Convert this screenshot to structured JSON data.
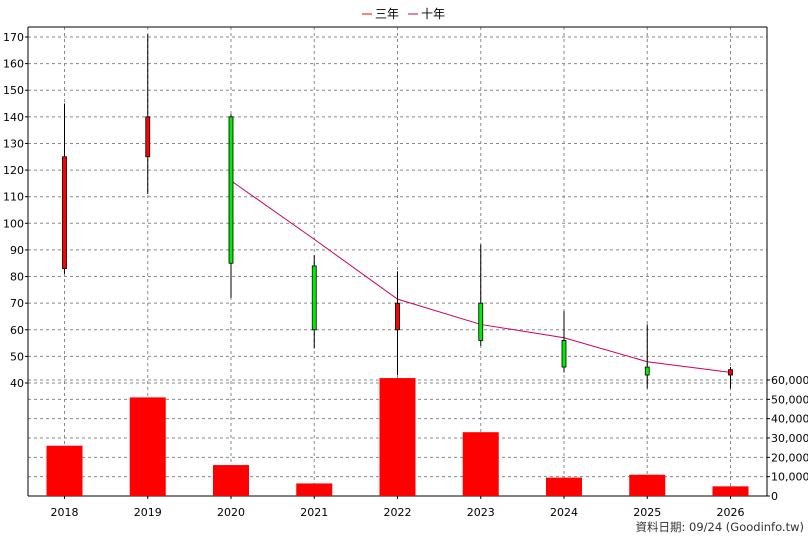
{
  "chart_data": {
    "type": "candlestick+bar",
    "legend": [
      "三年",
      "十年"
    ],
    "colors": {
      "up": "#ff0000",
      "down": "#00ee00",
      "line": "#cc0066",
      "volume": "#ff0000",
      "grid": "#8a8a8a"
    },
    "years": [
      "2018",
      "2019",
      "2020",
      "2021",
      "2022",
      "2023",
      "2024",
      "2025",
      "2026"
    ],
    "price_axis": {
      "min": 30,
      "max": 175,
      "ticks": [
        40,
        50,
        60,
        70,
        80,
        90,
        100,
        110,
        120,
        130,
        140,
        150,
        160,
        170
      ]
    },
    "candles": [
      {
        "year": "2018",
        "open": 83,
        "close": 125,
        "high": 145,
        "low": 81
      },
      {
        "year": "2019",
        "open": 125,
        "close": 140,
        "high": 171,
        "low": 111
      },
      {
        "year": "2020",
        "open": 140,
        "close": 85,
        "high": 141,
        "low": 72
      },
      {
        "year": "2021",
        "open": 84,
        "close": 60,
        "high": 88,
        "low": 53
      },
      {
        "year": "2022",
        "open": 60,
        "close": 70,
        "high": 82,
        "low": 43
      },
      {
        "year": "2023",
        "open": 70,
        "close": 56,
        "high": 92,
        "low": 54
      },
      {
        "year": "2024",
        "open": 56,
        "close": 46,
        "high": 67,
        "low": 44
      },
      {
        "year": "2025",
        "open": 46,
        "close": 43,
        "high": 62,
        "low": 38
      },
      {
        "year": "2026",
        "open": 43,
        "close": 45,
        "high": 46,
        "low": 38
      }
    ],
    "ma_line": [
      {
        "year": "2020",
        "value": 116
      },
      {
        "year": "2021",
        "value": 94
      },
      {
        "year": "2022",
        "value": 71.5
      },
      {
        "year": "2023",
        "value": 62
      },
      {
        "year": "2024",
        "value": 57
      },
      {
        "year": "2025",
        "value": 48
      },
      {
        "year": "2026",
        "value": 44
      }
    ],
    "volume_axis": {
      "min": 0,
      "max": 60000,
      "ticks": [
        "0",
        "10,000",
        "20,000",
        "30,000",
        "40,000",
        "50,000",
        "60,000"
      ]
    },
    "volumes": [
      26000,
      51000,
      16000,
      6500,
      61000,
      33000,
      9500,
      11000,
      5000
    ]
  },
  "footer": "資料日期: 09/24  (Goodinfo.tw)"
}
